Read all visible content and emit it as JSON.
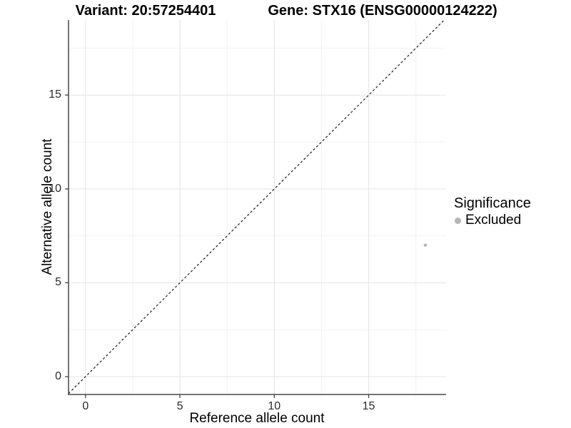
{
  "titles": {
    "variant": "Variant: 20:57254401",
    "gene": "Gene: STX16 (ENSG00000124222)"
  },
  "legend": {
    "title": "Significance",
    "items": [
      {
        "label": "Excluded",
        "color": "#b5b5b5"
      }
    ]
  },
  "chart_data": {
    "type": "scatter",
    "title": "Variant: 20:57254401   Gene: STX16 (ENSG00000124222)",
    "xlabel": "Reference allele count",
    "ylabel": "Alternative allele count",
    "xlim": [
      -0.9,
      19.1
    ],
    "ylim": [
      -0.95,
      19.0
    ],
    "x_ticks": [
      0,
      5,
      10,
      15
    ],
    "y_ticks": [
      0,
      5,
      10,
      15
    ],
    "x_minor_ticks": [
      2.5,
      7.5,
      12.5,
      17.5
    ],
    "y_minor_ticks": [
      2.5,
      7.5,
      12.5,
      17.5
    ],
    "grid": "major+minor",
    "legend_position": "right",
    "series": [
      {
        "name": "Excluded",
        "color": "#b5b5b5",
        "marker": "circle",
        "points": [
          {
            "x": 18,
            "y": 7
          }
        ]
      }
    ],
    "reference_line": {
      "type": "identity",
      "slope": 1,
      "intercept": 0,
      "style": "dashed",
      "color": "#1a1a1a"
    }
  },
  "style": {
    "background": "#ffffff",
    "panel_background": "#ffffff",
    "grid_major": "#e6e6e6",
    "grid_minor": "#f2f2f2",
    "axis_line": "#474747",
    "tick_text": "#2b2b2b",
    "title_text": "#000000"
  }
}
